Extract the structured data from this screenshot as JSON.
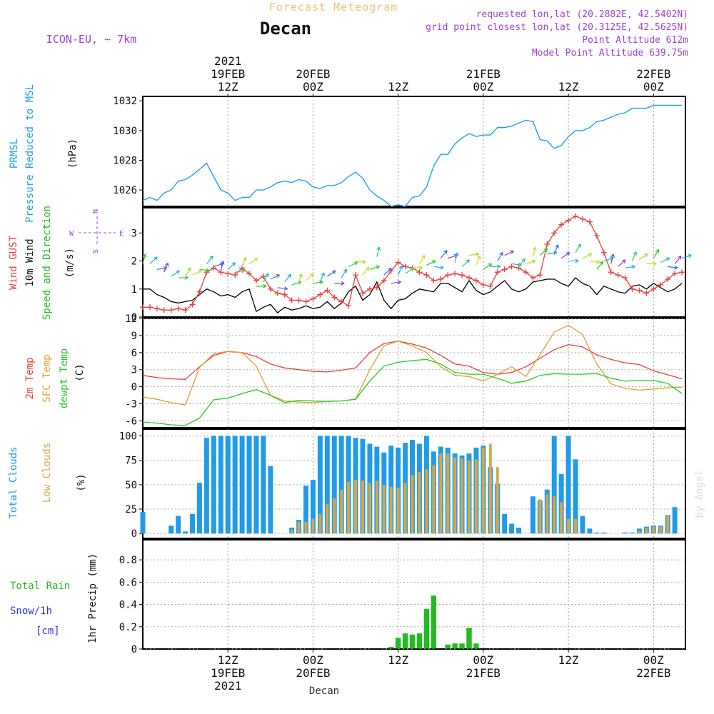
{
  "header": {
    "super_title": "Forecast Meteogram",
    "location": "Decan",
    "model": "ICON-EU, ~ 7km",
    "requested": "requested lon,lat (20.2882E, 42.5402N)",
    "gridpoint": "grid point closest lon,lat (20.3125E, 42.5625N)",
    "altitude": "Point Altitude 612m",
    "model_altitude": "Model Point Altitude 639.75m",
    "footer_location": "Decan",
    "watermark": "by Angel"
  },
  "time_axis": {
    "top_labels": [
      {
        "t": 12,
        "lines": [
          "2021",
          "19FEB",
          "12Z"
        ]
      },
      {
        "t": 24,
        "lines": [
          "20FEB",
          "00Z"
        ]
      },
      {
        "t": 36,
        "lines": [
          "12Z"
        ]
      },
      {
        "t": 48,
        "lines": [
          "21FEB",
          "00Z"
        ]
      },
      {
        "t": 60,
        "lines": [
          "12Z"
        ]
      },
      {
        "t": 72,
        "lines": [
          "22FEB",
          "00Z"
        ]
      }
    ],
    "bottom_labels": [
      {
        "t": 12,
        "lines": [
          "12Z",
          "19FEB",
          "2021"
        ]
      },
      {
        "t": 24,
        "lines": [
          "00Z",
          "20FEB"
        ]
      },
      {
        "t": 36,
        "lines": [
          "12Z"
        ]
      },
      {
        "t": 48,
        "lines": [
          "00Z",
          "21FEB"
        ]
      },
      {
        "t": 60,
        "lines": [
          "12Z"
        ]
      },
      {
        "t": 72,
        "lines": [
          "00Z",
          "22FEB"
        ]
      }
    ],
    "t_range": [
      0,
      76.5
    ]
  },
  "colors": {
    "pressure": "#1aa3e8",
    "gust": "#e8403a",
    "wind": "#000000",
    "dir_label": "#22bb22",
    "temp2m": "#e8403a",
    "sfc": "#e0a030",
    "dewpt": "#22cc22",
    "total_cloud": "#1f9bea",
    "low_cloud": "#d4a84a",
    "rain": "#22bb22",
    "snow": "#3333dd",
    "compass": "#aa44cc",
    "header_purple": "#a040d0",
    "title_gold": "#e8c878"
  },
  "chart_data": [
    {
      "id": "pressure",
      "type": "line",
      "ylabel_lines": [
        "PRMSL",
        "Pressure Reduced to MSL"
      ],
      "unit": "(hPa)",
      "yticks": [
        1026,
        1028,
        1030,
        1032
      ],
      "ylim": [
        1024.9,
        1032.3
      ],
      "x": [
        0,
        1,
        2,
        3,
        4,
        5,
        6,
        7,
        8,
        9,
        10,
        11,
        12,
        13,
        14,
        15,
        16,
        17,
        18,
        19,
        20,
        21,
        22,
        23,
        24,
        25,
        26,
        27,
        28,
        29,
        30,
        31,
        32,
        33,
        34,
        35,
        36,
        37,
        38,
        39,
        40,
        41,
        42,
        43,
        44,
        45,
        46,
        47,
        48,
        49,
        50,
        51,
        52,
        53,
        54,
        55,
        56,
        57,
        58,
        59,
        60,
        61,
        62,
        63,
        64,
        65,
        66,
        67,
        68,
        69,
        70,
        71,
        72,
        73,
        74,
        75,
        76
      ],
      "values": [
        1025.3,
        1025.5,
        1025.3,
        1025.8,
        1026.0,
        1026.6,
        1026.7,
        1027.0,
        1027.4,
        1027.8,
        1026.9,
        1026.0,
        1025.8,
        1025.3,
        1025.5,
        1025.5,
        1026.0,
        1026.0,
        1026.2,
        1026.5,
        1026.6,
        1026.5,
        1026.7,
        1026.6,
        1026.2,
        1026.1,
        1026.3,
        1026.3,
        1026.5,
        1026.9,
        1027.2,
        1026.8,
        1026.0,
        1025.6,
        1025.3,
        1024.9,
        1025.0,
        1024.9,
        1025.5,
        1025.6,
        1026.2,
        1027.6,
        1028.4,
        1028.4,
        1029.1,
        1029.5,
        1029.8,
        1029.6,
        1029.7,
        1029.7,
        1030.2,
        1030.2,
        1030.3,
        1030.5,
        1030.7,
        1030.6,
        1029.4,
        1029.3,
        1028.8,
        1029.0,
        1029.6,
        1030.0,
        1030.0,
        1030.2,
        1030.6,
        1030.7,
        1030.9,
        1031.1,
        1031.2,
        1031.5,
        1031.5,
        1031.5,
        1031.7,
        1031.7,
        1031.7,
        1031.7,
        1031.7
      ]
    },
    {
      "id": "wind",
      "type": "line",
      "ylabel_lines": [
        "Wind GUST",
        "10m Wind",
        "Speed and Direction"
      ],
      "unit": "(m/s)",
      "compass": {
        "n": "N",
        "s": "S",
        "w": "W",
        "e": "E"
      },
      "yticks": [
        0,
        1,
        2,
        3
      ],
      "ylim": [
        0,
        3.9
      ],
      "x": [
        0,
        1,
        2,
        3,
        4,
        5,
        6,
        7,
        8,
        9,
        10,
        11,
        12,
        13,
        14,
        15,
        16,
        17,
        18,
        19,
        20,
        21,
        22,
        23,
        24,
        25,
        26,
        27,
        28,
        29,
        30,
        31,
        32,
        33,
        34,
        35,
        36,
        37,
        38,
        39,
        40,
        41,
        42,
        43,
        44,
        45,
        46,
        47,
        48,
        49,
        50,
        51,
        52,
        53,
        54,
        55,
        56,
        57,
        58,
        59,
        60,
        61,
        62,
        63,
        64,
        65,
        66,
        67,
        68,
        69,
        70,
        71,
        72,
        73,
        74,
        75,
        76
      ],
      "gust": [
        0.35,
        0.35,
        0.3,
        0.25,
        0.25,
        0.3,
        0.25,
        0.45,
        0.9,
        1.6,
        1.75,
        1.6,
        1.55,
        1.5,
        1.75,
        1.55,
        1.3,
        1.45,
        1.0,
        0.85,
        0.8,
        0.6,
        0.6,
        0.55,
        0.65,
        0.8,
        0.95,
        0.7,
        0.55,
        0.4,
        1.5,
        0.85,
        1.0,
        1.05,
        1.3,
        1.65,
        1.95,
        1.8,
        1.75,
        1.6,
        1.5,
        1.3,
        1.35,
        1.5,
        1.55,
        1.5,
        1.4,
        1.3,
        1.15,
        1.1,
        1.6,
        1.7,
        1.8,
        1.75,
        1.6,
        1.4,
        1.5,
        2.6,
        3.0,
        3.3,
        3.45,
        3.6,
        3.5,
        3.4,
        2.9,
        2.3,
        1.6,
        1.5,
        1.4,
        1.0,
        0.95,
        0.85,
        1.0,
        1.15,
        1.35,
        1.55,
        1.6
      ],
      "speed": [
        1.0,
        1.0,
        0.8,
        0.7,
        0.55,
        0.5,
        0.55,
        0.6,
        0.8,
        1.0,
        0.9,
        0.75,
        0.8,
        0.7,
        0.9,
        1.0,
        0.2,
        0.35,
        0.45,
        0.15,
        0.35,
        0.25,
        0.3,
        0.4,
        0.3,
        0.35,
        0.55,
        0.3,
        0.5,
        0.9,
        1.1,
        0.6,
        0.8,
        1.25,
        0.6,
        0.3,
        0.6,
        0.65,
        0.85,
        1.0,
        0.95,
        0.9,
        1.2,
        1.2,
        1.05,
        0.9,
        1.3,
        0.95,
        0.8,
        0.9,
        1.1,
        1.3,
        1.0,
        0.9,
        1.0,
        1.25,
        1.3,
        1.35,
        1.35,
        1.2,
        1.1,
        1.4,
        1.2,
        1.1,
        0.8,
        1.1,
        1.0,
        0.9,
        0.85,
        1.1,
        1.15,
        1.0,
        1.2,
        1.05,
        0.9,
        1.0,
        1.2
      ]
    },
    {
      "id": "temperature",
      "type": "line",
      "ylabel_lines": [
        "2m Temp",
        "SFC Temp",
        "dewpt Temp"
      ],
      "unit": "(C)",
      "yticks": [
        -6,
        -3,
        0,
        3,
        6,
        9,
        12
      ],
      "ylim": [
        -7.2,
        12
      ],
      "x": [
        0,
        2,
        4,
        6,
        8,
        10,
        12,
        14,
        16,
        18,
        20,
        22,
        24,
        26,
        28,
        30,
        32,
        34,
        36,
        38,
        40,
        42,
        44,
        46,
        48,
        50,
        52,
        54,
        56,
        58,
        60,
        62,
        64,
        66,
        68,
        70,
        72,
        74,
        76
      ],
      "temp2m": [
        2.0,
        1.6,
        1.4,
        1.3,
        3.5,
        5.5,
        6.2,
        6.0,
        5.3,
        4.0,
        3.3,
        3.0,
        2.7,
        2.6,
        2.9,
        3.3,
        6.0,
        7.6,
        8.0,
        7.5,
        6.8,
        5.5,
        4.0,
        3.6,
        2.5,
        2.2,
        2.5,
        3.5,
        5.0,
        6.5,
        7.4,
        7.0,
        5.6,
        4.8,
        4.2,
        3.9,
        2.8,
        2.1,
        1.4
      ],
      "sfc": [
        -1.8,
        -2.2,
        -2.8,
        -3.2,
        3.4,
        5.8,
        6.2,
        6.0,
        3.6,
        -1.5,
        -2.5,
        -2.7,
        -2.8,
        -2.6,
        -2.5,
        -2.2,
        3.0,
        7.2,
        8.0,
        7.2,
        6.0,
        3.5,
        2.0,
        1.8,
        1.0,
        2.2,
        3.5,
        1.8,
        5.6,
        9.6,
        10.8,
        9.2,
        4.0,
        0.5,
        -0.3,
        -0.6,
        -0.4,
        -0.2,
        -0.1
      ],
      "dewpt": [
        -6.2,
        -6.4,
        -6.7,
        -6.8,
        -5.5,
        -2.3,
        -2.0,
        -1.2,
        -0.5,
        -1.5,
        -2.8,
        -2.4,
        -2.5,
        -2.6,
        -2.5,
        -2.2,
        1.0,
        3.6,
        4.3,
        4.6,
        4.8,
        4.0,
        2.5,
        2.2,
        2.2,
        1.5,
        0.6,
        1.0,
        2.0,
        2.3,
        2.2,
        2.2,
        2.3,
        1.5,
        1.0,
        1.1,
        1.1,
        0.6,
        -1.2
      ]
    },
    {
      "id": "clouds",
      "type": "bar",
      "ylabel_lines": [
        "Total Clouds",
        "Low Clouds"
      ],
      "unit": "(%)",
      "yticks": [
        0,
        25,
        50,
        75,
        100
      ],
      "ylim": [
        -5,
        107
      ],
      "x": [
        0,
        1,
        2,
        3,
        4,
        5,
        6,
        7,
        8,
        9,
        10,
        11,
        12,
        13,
        14,
        15,
        16,
        17,
        18,
        19,
        20,
        21,
        22,
        23,
        24,
        25,
        26,
        27,
        28,
        29,
        30,
        31,
        32,
        33,
        34,
        35,
        36,
        37,
        38,
        39,
        40,
        41,
        42,
        43,
        44,
        45,
        46,
        47,
        48,
        49,
        50,
        51,
        52,
        53,
        54,
        55,
        56,
        57,
        58,
        59,
        60,
        61,
        62,
        63,
        64,
        65,
        66,
        67,
        68,
        69,
        70,
        71,
        72,
        73,
        74,
        75,
        76
      ],
      "total": [
        22,
        0,
        0,
        0,
        8,
        18,
        2,
        20,
        52,
        98,
        100,
        100,
        100,
        100,
        100,
        100,
        100,
        100,
        69,
        0,
        0,
        6,
        14,
        49,
        55,
        100,
        100,
        100,
        100,
        100,
        98,
        97,
        92,
        89,
        83,
        90,
        88,
        93,
        96,
        92,
        100,
        84,
        89,
        88,
        82,
        80,
        82,
        88,
        90,
        68,
        51,
        20,
        10,
        6,
        0,
        38,
        34,
        45,
        100,
        61,
        100,
        76,
        18,
        5,
        1,
        1,
        0,
        0,
        1,
        1,
        5,
        7,
        8,
        8,
        19,
        27,
        0
      ],
      "low": [
        0,
        0,
        0,
        0,
        0,
        0,
        0,
        0,
        0,
        0,
        0,
        0,
        0,
        0,
        0,
        0,
        0,
        0,
        0,
        0,
        0,
        4,
        12,
        12,
        15,
        20,
        30,
        36,
        45,
        53,
        55,
        54,
        52,
        54,
        50,
        48,
        47,
        52,
        60,
        63,
        66,
        70,
        82,
        82,
        78,
        77,
        75,
        76,
        88,
        92,
        68,
        0,
        0,
        0,
        0,
        0,
        35,
        40,
        38,
        32,
        15,
        15,
        0,
        0,
        0,
        0,
        0,
        0,
        0,
        0,
        3,
        6,
        7,
        7,
        19,
        0,
        0
      ]
    },
    {
      "id": "precip",
      "type": "bar",
      "ylabel_lines": [
        "1hr Precip (mm)"
      ],
      "side_labels": {
        "rain": "Total  Rain",
        "snow": "Snow/1h",
        "cm": "[cm]"
      },
      "yticks": [
        0,
        0.2,
        0.4,
        0.6,
        0.8
      ],
      "ylim": [
        0,
        0.98
      ],
      "x": [
        35,
        36,
        37,
        38,
        39,
        40,
        41,
        42,
        43,
        44,
        45,
        46,
        47,
        48,
        49,
        50
      ],
      "values": [
        0.02,
        0.1,
        0.14,
        0.13,
        0.14,
        0.36,
        0.48,
        0.0,
        0.04,
        0.05,
        0.05,
        0.19,
        0.05,
        0.0,
        0.0,
        0.0
      ]
    }
  ]
}
